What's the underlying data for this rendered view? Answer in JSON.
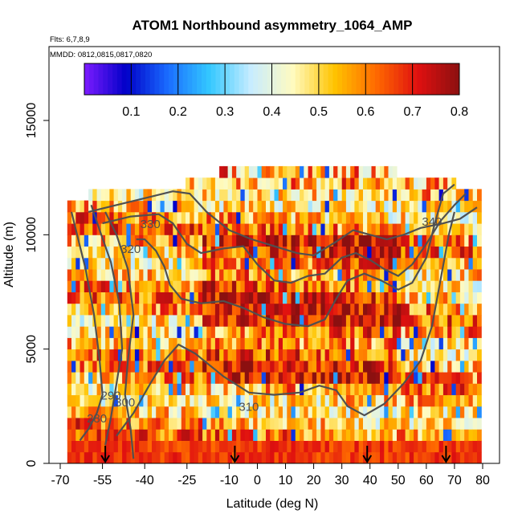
{
  "chart_data": {
    "type": "heatmap",
    "title": "ATOM1 Northbound asymmetry_1064_AMP",
    "subtitle_flights": "Flts: 6,7,8,9",
    "subtitle_dates": "MMDD: 0812,0815,0817,0820",
    "xlabel": "Latitude (deg N)",
    "ylabel": "Altitude (m)",
    "xlim": [
      -70,
      80
    ],
    "ylim": [
      0,
      15000
    ],
    "x_ticks": [
      -70,
      -55,
      -40,
      -25,
      -10,
      0,
      10,
      20,
      30,
      40,
      50,
      60,
      70,
      80
    ],
    "y_ticks": [
      0,
      5000,
      10000,
      15000
    ],
    "colorbar": {
      "range": [
        0,
        0.8
      ],
      "ticks": [
        0.1,
        0.2,
        0.3,
        0.4,
        0.5,
        0.6,
        0.7,
        0.8
      ],
      "tick_labels": [
        "0.1",
        "0.2",
        "0.3",
        "0.4",
        "0.5",
        "0.6",
        "0.7",
        "0.8"
      ],
      "colors": [
        "#7d1cff",
        "#0000c8",
        "#1a6cff",
        "#33c8ff",
        "#c8ecff",
        "#fffbc0",
        "#ffc400",
        "#ff6a00",
        "#e01010",
        "#8b1010"
      ]
    },
    "arrows_lat": [
      -54,
      -8,
      39,
      67
    ],
    "contours": [
      {
        "label": "280",
        "label_at": [
          -57,
          1800
        ],
        "points": [
          [
            -63,
            1000
          ],
          [
            -60,
            1500
          ],
          [
            -57,
            2200
          ],
          [
            -55,
            3000
          ],
          [
            -56,
            4500
          ],
          [
            -58,
            6500
          ],
          [
            -61,
            8500
          ],
          [
            -64,
            10000
          ],
          [
            -66,
            11000
          ]
        ]
      },
      {
        "label": "290",
        "label_at": [
          -52,
          2800
        ],
        "points": [
          [
            -54,
            800
          ],
          [
            -52,
            2000
          ],
          [
            -50,
            3500
          ],
          [
            -48,
            5000
          ],
          [
            -49,
            7000
          ],
          [
            -52,
            8800
          ],
          [
            -56,
            10200
          ],
          [
            -59,
            11300
          ]
        ]
      },
      {
        "label": "300",
        "label_at": [
          -47,
          2500
        ],
        "points": [
          [
            -44,
            200
          ],
          [
            -45,
            1500
          ],
          [
            -47,
            3000
          ],
          [
            -46,
            4500
          ],
          [
            -44,
            6500
          ],
          [
            -46,
            8500
          ],
          [
            -50,
            10000
          ],
          [
            -54,
            11000
          ]
        ]
      },
      {
        "label": "310",
        "label_at": [
          -3,
          2300
        ],
        "points": [
          [
            -50,
            1200
          ],
          [
            -44,
            2200
          ],
          [
            -38,
            3500
          ],
          [
            -33,
            4500
          ],
          [
            -28,
            5200
          ],
          [
            -22,
            4800
          ],
          [
            -12,
            3800
          ],
          [
            -3,
            3100
          ],
          [
            6,
            3000
          ],
          [
            15,
            3100
          ],
          [
            22,
            3400
          ],
          [
            28,
            3200
          ],
          [
            32,
            2500
          ],
          [
            38,
            2100
          ],
          [
            45,
            2600
          ],
          [
            52,
            3500
          ],
          [
            58,
            4500
          ],
          [
            62,
            6000
          ],
          [
            65,
            8000
          ],
          [
            68,
            10000
          ],
          [
            70,
            11000
          ]
        ]
      },
      {
        "label": "320",
        "label_at": [
          -45,
          9200
        ],
        "points": [
          [
            -43,
            9800
          ],
          [
            -40,
            9800
          ],
          [
            -36,
            9300
          ],
          [
            -33,
            8600
          ],
          [
            -31,
            7800
          ],
          [
            -27,
            7200
          ],
          [
            -20,
            7000
          ],
          [
            -12,
            7100
          ],
          [
            -5,
            6800
          ],
          [
            2,
            6400
          ],
          [
            10,
            6100
          ],
          [
            18,
            6000
          ],
          [
            24,
            6300
          ],
          [
            28,
            7200
          ],
          [
            32,
            8000
          ],
          [
            38,
            8300
          ],
          [
            44,
            8000
          ],
          [
            50,
            7600
          ],
          [
            55,
            7900
          ],
          [
            60,
            9000
          ],
          [
            63,
            10500
          ],
          [
            66,
            11800
          ],
          [
            70,
            12200
          ]
        ]
      },
      {
        "label": "330",
        "label_at": [
          -38,
          10300
        ],
        "points": [
          [
            -55,
            10500
          ],
          [
            -45,
            10800
          ],
          [
            -35,
            10900
          ],
          [
            -30,
            10500
          ],
          [
            -25,
            9600
          ],
          [
            -20,
            9200
          ],
          [
            -12,
            9400
          ],
          [
            -5,
            9500
          ],
          [
            0,
            8700
          ],
          [
            6,
            8000
          ],
          [
            12,
            7900
          ],
          [
            18,
            8200
          ],
          [
            24,
            8300
          ],
          [
            30,
            9000
          ],
          [
            35,
            9200
          ],
          [
            40,
            8900
          ],
          [
            45,
            8500
          ],
          [
            50,
            8200
          ],
          [
            55,
            8700
          ],
          [
            60,
            9600
          ],
          [
            65,
            10600
          ],
          [
            70,
            11300
          ],
          [
            74,
            11800
          ]
        ]
      },
      {
        "label": "340",
        "label_at": [
          62,
          10400
        ],
        "points": [
          [
            -60,
            11000
          ],
          [
            -50,
            11300
          ],
          [
            -40,
            11600
          ],
          [
            -30,
            11900
          ],
          [
            -24,
            11800
          ],
          [
            -18,
            11000
          ],
          [
            -10,
            10200
          ],
          [
            -2,
            9800
          ],
          [
            6,
            9500
          ],
          [
            14,
            9200
          ],
          [
            20,
            9100
          ],
          [
            28,
            9700
          ],
          [
            34,
            10200
          ],
          [
            40,
            10000
          ],
          [
            46,
            9800
          ],
          [
            52,
            10000
          ],
          [
            58,
            10300
          ],
          [
            66,
            10500
          ],
          [
            72,
            10700
          ],
          [
            78,
            11200
          ]
        ]
      }
    ]
  }
}
